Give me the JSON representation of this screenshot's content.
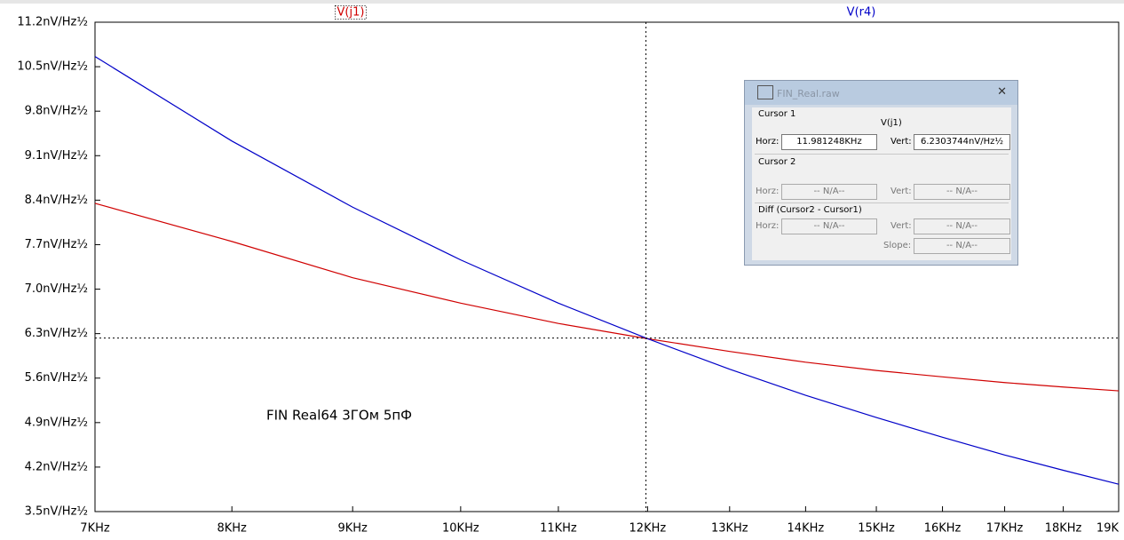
{
  "chart_data": {
    "type": "line",
    "annotation": "FIN Real64 3ГОм 5пФ",
    "x": [
      7000,
      8000,
      9000,
      10000,
      11000,
      12000,
      13000,
      14000,
      15000,
      16000,
      17000,
      18000,
      19000
    ],
    "series": [
      {
        "name": "V(j1)",
        "color": "#d00000",
        "values": [
          8.35,
          7.75,
          7.18,
          6.78,
          6.46,
          6.22,
          6.02,
          5.85,
          5.72,
          5.62,
          5.53,
          5.46,
          5.4
        ]
      },
      {
        "name": "V(r4)",
        "color": "#0000c8",
        "values": [
          10.66,
          9.33,
          8.29,
          7.46,
          6.78,
          6.22,
          5.74,
          5.33,
          4.98,
          4.67,
          4.39,
          4.15,
          3.93
        ]
      }
    ],
    "xscale": "log",
    "xlim": [
      7000,
      19000
    ],
    "xticks": [
      {
        "value": 7000,
        "label": "7KHz"
      },
      {
        "value": 8000,
        "label": "8KHz"
      },
      {
        "value": 9000,
        "label": "9KHz"
      },
      {
        "value": 10000,
        "label": "10KHz"
      },
      {
        "value": 11000,
        "label": "11KHz"
      },
      {
        "value": 12000,
        "label": "12KHz"
      },
      {
        "value": 13000,
        "label": "13KHz"
      },
      {
        "value": 14000,
        "label": "14KHz"
      },
      {
        "value": 15000,
        "label": "15KHz"
      },
      {
        "value": 16000,
        "label": "16KHz"
      },
      {
        "value": 17000,
        "label": "17KHz"
      },
      {
        "value": 18000,
        "label": "18KHz"
      },
      {
        "value": 19000,
        "label": "19K"
      }
    ],
    "ylim": [
      3.5,
      11.2
    ],
    "yticks": [
      {
        "value": 3.5,
        "label": "3.5nV/Hz½"
      },
      {
        "value": 4.2,
        "label": "4.2nV/Hz½"
      },
      {
        "value": 4.9,
        "label": "4.9nV/Hz½"
      },
      {
        "value": 5.6,
        "label": "5.6nV/Hz½"
      },
      {
        "value": 6.3,
        "label": "6.3nV/Hz½"
      },
      {
        "value": 7.0,
        "label": "7.0nV/Hz½"
      },
      {
        "value": 7.7,
        "label": "7.7nV/Hz½"
      },
      {
        "value": 8.4,
        "label": "8.4nV/Hz½"
      },
      {
        "value": 9.1,
        "label": "9.1nV/Hz½"
      },
      {
        "value": 9.8,
        "label": "9.8nV/Hz½"
      },
      {
        "value": 10.5,
        "label": "10.5nV/Hz½"
      },
      {
        "value": 11.2,
        "label": "11.2nV/Hz½"
      }
    ],
    "grid": false,
    "cursor": {
      "x": 11981.248,
      "y": 6.2303744
    }
  },
  "cursor_window": {
    "title": "FIN_Real.raw",
    "cursor1": {
      "label": "Cursor 1",
      "trace": "V(j1)",
      "horz_label": "Horz:",
      "horz": "11.981248KHz",
      "vert_label": "Vert:",
      "vert": "6.2303744nV/Hz½"
    },
    "cursor2": {
      "label": "Cursor 2",
      "horz_label": "Horz:",
      "horz": "-- N/A--",
      "vert_label": "Vert:",
      "vert": "-- N/A--"
    },
    "diff": {
      "label": "Diff (Cursor2 - Cursor1)",
      "horz_label": "Horz:",
      "horz": "-- N/A--",
      "vert_label": "Vert:",
      "vert": "-- N/A--",
      "slope_label": "Slope:",
      "slope": "-- N/A--"
    }
  }
}
